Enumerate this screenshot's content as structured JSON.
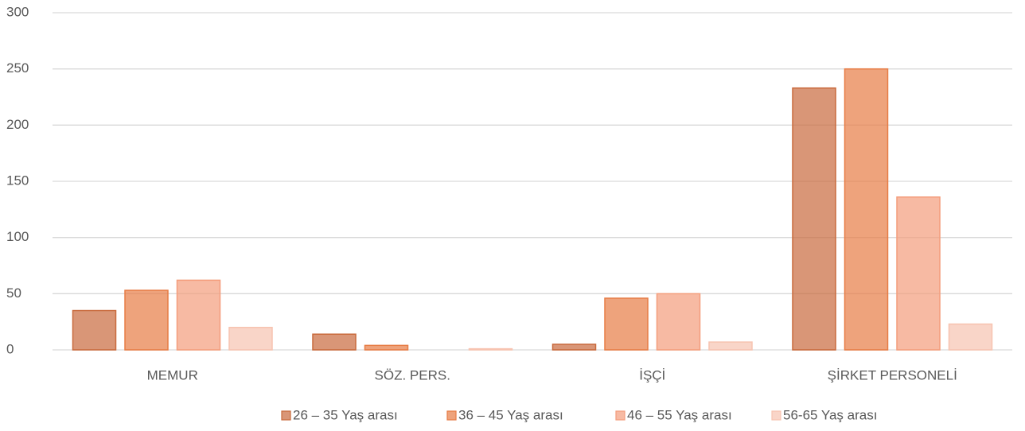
{
  "chart_data": {
    "type": "bar",
    "categories": [
      "MEMUR",
      "SÖZ. PERS.",
      "İŞÇİ",
      "ŞİRKET PERSONELİ"
    ],
    "series": [
      {
        "name": "26 – 35 Yaş arası",
        "color": "#c96a3d",
        "values": [
          35,
          14,
          5,
          233
        ]
      },
      {
        "name": "36 – 45 Yaş arası",
        "color": "#e77c45",
        "values": [
          53,
          4,
          46,
          250
        ]
      },
      {
        "name": "46 – 55 Yaş arası",
        "color": "#f49d7c",
        "values": [
          62,
          0,
          50,
          136
        ]
      },
      {
        "name": "56-65 Yaş arası",
        "color": "#f7c3b0",
        "values": [
          20,
          1,
          7,
          23
        ]
      }
    ],
    "ylim": [
      0,
      300
    ],
    "yticks": [
      0,
      50,
      100,
      150,
      200,
      250,
      300
    ],
    "grid": true,
    "legend": "bottom"
  }
}
